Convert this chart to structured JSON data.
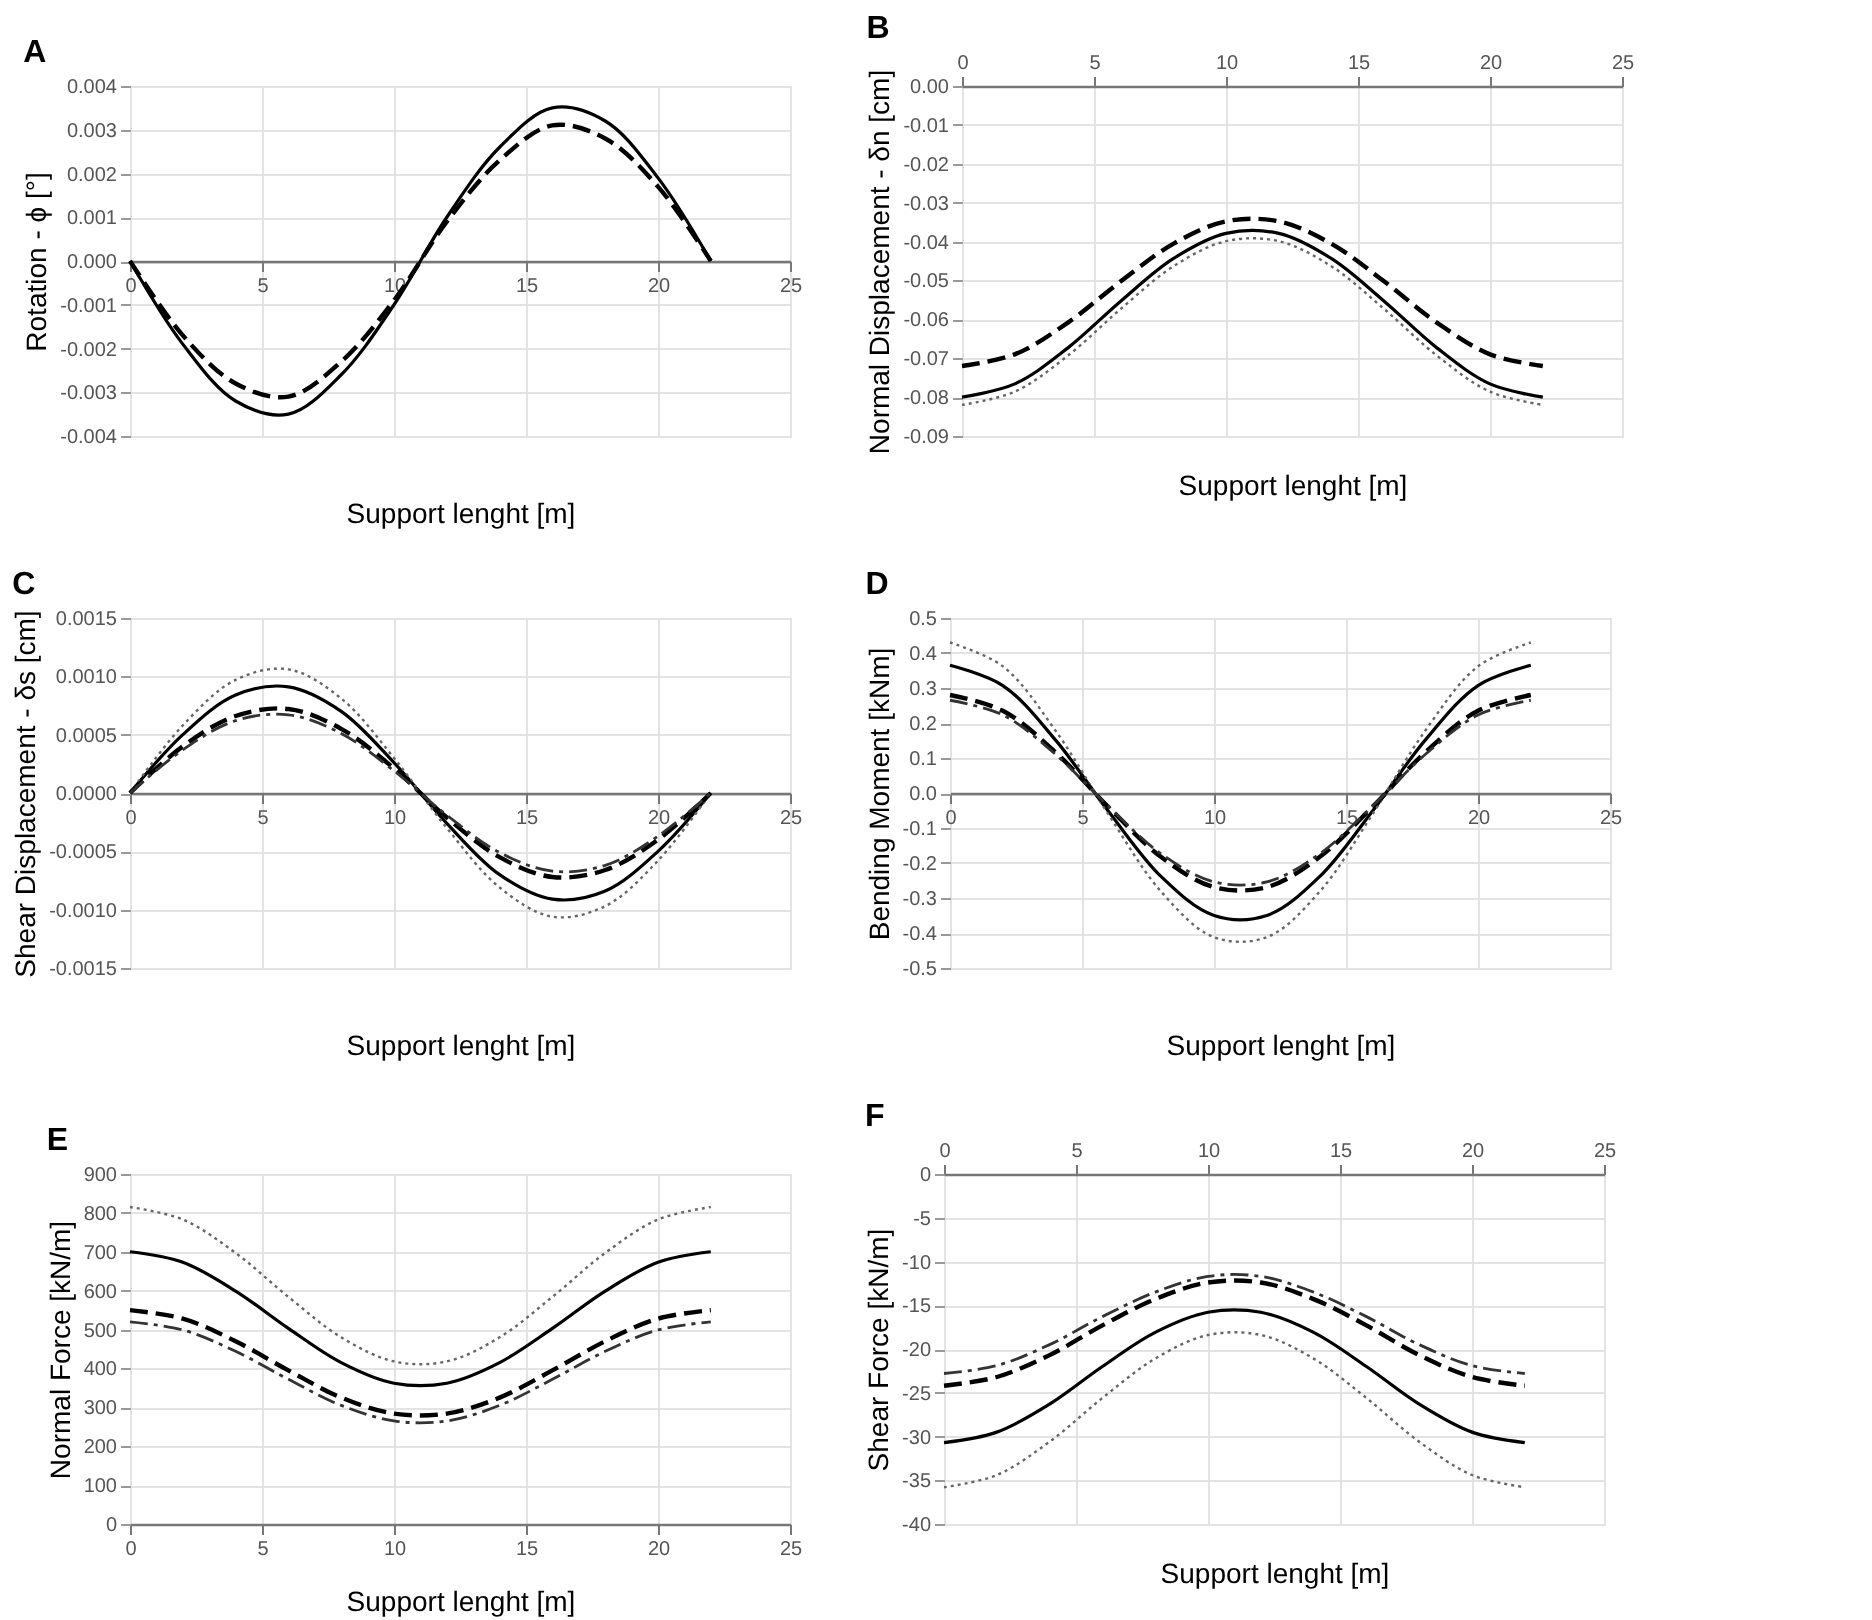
{
  "chart_data": [
    {
      "type": "line",
      "title": "A",
      "xlabel": "Support lenght [m]",
      "ylabel": "Rotation - ϕ [°]",
      "x": [
        0,
        2,
        4,
        6,
        8,
        10,
        12,
        14,
        16,
        18,
        20,
        22
      ],
      "xlim": [
        0,
        25
      ],
      "xticks": [
        0,
        5,
        10,
        15,
        20,
        25
      ],
      "ylim": [
        -0.004,
        0.004
      ],
      "yticks": [
        -0.004,
        -0.003,
        -0.002,
        -0.001,
        {
          "value": 0,
          "label": "0.000"
        },
        0.001,
        0.002,
        0.003,
        0.004
      ],
      "grid": true,
      "series": [
        {
          "color": "#000000",
          "line_style": "solid",
          "values": [
            0,
            -0.0019,
            -0.0032,
            -0.0035,
            -0.0026,
            -0.001,
            0.001,
            0.0026,
            0.0035,
            0.0032,
            0.0019,
            0
          ]
        },
        {
          "color": "#000000",
          "line_style": "dashed",
          "values": [
            0,
            -0.0017,
            -0.0028,
            -0.0031,
            -0.0023,
            -0.0009,
            0.0009,
            0.0023,
            0.0031,
            0.0028,
            0.0017,
            0
          ]
        }
      ]
    },
    {
      "type": "line",
      "title": "B",
      "xlabel": "Support lenght [m]",
      "ylabel": "Normal Displacement - δn [cm]",
      "x": [
        0,
        2,
        4,
        6,
        8,
        10,
        12,
        14,
        16,
        18,
        20,
        22
      ],
      "xlim": [
        0,
        25
      ],
      "xticks": [
        0,
        5,
        10,
        15,
        20,
        25
      ],
      "ylim": [
        -0.09,
        0
      ],
      "yticks": [
        -0.09,
        -0.08,
        -0.07,
        -0.06,
        -0.05,
        -0.04,
        -0.03,
        -0.02,
        -0.01,
        {
          "value": 0,
          "label": "0.00"
        }
      ],
      "grid": true,
      "series": [
        {
          "color": "#000000",
          "line_style": "solid",
          "values": [
            -0.08,
            -0.0766,
            -0.0674,
            -0.0554,
            -0.0444,
            -0.0379,
            -0.0379,
            -0.0444,
            -0.0554,
            -0.0674,
            -0.0766,
            -0.08
          ]
        },
        {
          "color": "#000000",
          "line_style": "dashed",
          "values": [
            -0.072,
            -0.069,
            -0.0609,
            -0.0503,
            -0.0406,
            -0.0348,
            -0.0348,
            -0.0406,
            -0.0503,
            -0.0609,
            -0.069,
            -0.072
          ]
        },
        {
          "color": "#666666",
          "line_style": "dotted",
          "values": [
            -0.082,
            -0.0786,
            -0.0694,
            -0.0574,
            -0.0464,
            -0.0399,
            -0.0399,
            -0.0464,
            -0.0574,
            -0.0694,
            -0.0786,
            -0.082
          ]
        }
      ]
    },
    {
      "type": "line",
      "title": "C",
      "xlabel": "Support lenght [m]",
      "ylabel": "Shear Displacement - δs [cm]",
      "x": [
        0,
        2,
        4,
        6,
        8,
        10,
        12,
        14,
        16,
        18,
        20,
        22
      ],
      "xlim": [
        0,
        25
      ],
      "xticks": [
        0,
        5,
        10,
        15,
        20,
        25
      ],
      "ylim": [
        -0.0015,
        0.0015
      ],
      "yticks": [
        -0.0015,
        {
          "value": -0.001,
          "label": "-0.0010"
        },
        -0.0005,
        {
          "value": 0,
          "label": "0.0000"
        },
        0.0005,
        {
          "value": 0.001,
          "label": "0.0010"
        },
        0.0015
      ],
      "grid": true,
      "series": [
        {
          "color": "#000000",
          "line_style": "solid",
          "values": [
            0,
            0.0005,
            0.00084,
            0.00091,
            0.0007,
            0.00026,
            -0.00026,
            -0.0007,
            -0.00091,
            -0.00084,
            -0.0005,
            0
          ]
        },
        {
          "color": "#666666",
          "line_style": "dotted",
          "values": [
            0,
            0.00058,
            0.00097,
            0.00106,
            0.00081,
            0.0003,
            -0.0003,
            -0.00081,
            -0.00106,
            -0.00097,
            -0.00058,
            0
          ]
        },
        {
          "color": "#000000",
          "line_style": "dashed",
          "values": [
            0,
            0.0004,
            0.00066,
            0.00072,
            0.00055,
            0.00021,
            -0.00021,
            -0.00055,
            -0.00072,
            -0.00066,
            -0.0004,
            0
          ]
        },
        {
          "color": "#333333",
          "line_style": "dashdot",
          "values": [
            0,
            0.00037,
            0.00062,
            0.00067,
            0.00051,
            0.00019,
            -0.00019,
            -0.00051,
            -0.00067,
            -0.00062,
            -0.00037,
            0
          ]
        }
      ]
    },
    {
      "type": "line",
      "title": "D",
      "xlabel": "Support lenght [m]",
      "ylabel": "Bending Moment [kNm]",
      "x": [
        0,
        2,
        4,
        6,
        8,
        10,
        12,
        14,
        16,
        18,
        20,
        22
      ],
      "xlim": [
        0,
        25
      ],
      "xticks": [
        0,
        5,
        10,
        15,
        20,
        25
      ],
      "ylim": [
        -0.5,
        0.5
      ],
      "yticks": [
        -0.5,
        -0.4,
        -0.3,
        -0.2,
        -0.1,
        {
          "value": 0,
          "label": "0.0"
        },
        0.1,
        0.2,
        0.3,
        0.4,
        0.5
      ],
      "grid": true,
      "series": [
        {
          "color": "#000000",
          "line_style": "solid",
          "values": [
            0.365,
            0.307,
            0.151,
            -0.052,
            -0.239,
            -0.35,
            -0.35,
            -0.239,
            -0.052,
            0.151,
            0.307,
            0.365
          ]
        },
        {
          "color": "#666666",
          "line_style": "dotted",
          "values": [
            0.43,
            0.362,
            0.178,
            -0.061,
            -0.282,
            -0.412,
            -0.412,
            -0.282,
            -0.061,
            0.178,
            0.362,
            0.43
          ]
        },
        {
          "color": "#000000",
          "line_style": "dashed",
          "values": [
            0.28,
            0.235,
            0.116,
            -0.04,
            -0.183,
            -0.269,
            -0.269,
            -0.183,
            -0.04,
            0.116,
            0.235,
            0.28
          ]
        },
        {
          "color": "#333333",
          "line_style": "dashdot",
          "values": [
            0.265,
            0.223,
            0.11,
            -0.038,
            -0.174,
            -0.254,
            -0.254,
            -0.174,
            -0.038,
            0.11,
            0.223,
            0.265
          ]
        }
      ]
    },
    {
      "type": "line",
      "title": "E",
      "xlabel": "Support lenght [m]",
      "ylabel": "Normal Force [kN/m]",
      "x": [
        0,
        2,
        4,
        6,
        8,
        10,
        12,
        14,
        16,
        18,
        20,
        22
      ],
      "xlim": [
        0,
        25
      ],
      "xticks": [
        0,
        5,
        10,
        15,
        20,
        25
      ],
      "ylim": [
        0,
        900
      ],
      "yticks": [
        0,
        100,
        200,
        300,
        400,
        500,
        600,
        700,
        800,
        900
      ],
      "grid": true,
      "series": [
        {
          "color": "#000000",
          "line_style": "solid",
          "values": [
            700,
            673,
            599,
            503,
            415,
            362,
            362,
            415,
            503,
            599,
            673,
            700
          ]
        },
        {
          "color": "#666666",
          "line_style": "dotted",
          "values": [
            815,
            783,
            697,
            584,
            480,
            418,
            418,
            480,
            584,
            697,
            783,
            815
          ]
        },
        {
          "color": "#000000",
          "line_style": "dashed",
          "values": [
            550,
            528,
            470,
            395,
            325,
            284,
            284,
            325,
            395,
            470,
            528,
            550
          ]
        },
        {
          "color": "#333333",
          "line_style": "dashdot",
          "values": [
            520,
            499,
            444,
            372,
            305,
            265,
            265,
            305,
            372,
            444,
            499,
            520
          ]
        }
      ]
    },
    {
      "type": "line",
      "title": "F",
      "xlabel": "Support lenght [m]",
      "ylabel": "Shear Force [kN/m]",
      "x": [
        0,
        2,
        4,
        6,
        8,
        10,
        12,
        14,
        16,
        18,
        20,
        22
      ],
      "xlim": [
        0,
        25
      ],
      "xticks": [
        0,
        5,
        10,
        15,
        20,
        25
      ],
      "ylim": [
        -40,
        0
      ],
      "yticks": [
        -40,
        -35,
        -30,
        -25,
        -20,
        -15,
        -10,
        -5,
        0
      ],
      "grid": true,
      "series": [
        {
          "color": "#000000",
          "line_style": "solid",
          "values": [
            -30.7,
            -29.5,
            -26.3,
            -22.0,
            -18.1,
            -15.8,
            -15.8,
            -18.1,
            -22.0,
            -26.3,
            -29.5,
            -30.7
          ]
        },
        {
          "color": "#666666",
          "line_style": "dotted",
          "values": [
            -35.8,
            -34.4,
            -30.6,
            -25.6,
            -21.1,
            -18.4,
            -18.4,
            -21.1,
            -25.6,
            -30.6,
            -34.4,
            -35.8
          ]
        },
        {
          "color": "#000000",
          "line_style": "dashed",
          "values": [
            -24.2,
            -23.2,
            -20.7,
            -17.3,
            -14.3,
            -12.4,
            -12.4,
            -14.3,
            -17.3,
            -20.7,
            -23.2,
            -24.2
          ]
        },
        {
          "color": "#333333",
          "line_style": "dashdot",
          "values": [
            -22.8,
            -21.9,
            -19.5,
            -16.3,
            -13.5,
            -11.7,
            -11.7,
            -13.5,
            -16.3,
            -19.5,
            -21.9,
            -22.8
          ]
        }
      ]
    }
  ]
}
